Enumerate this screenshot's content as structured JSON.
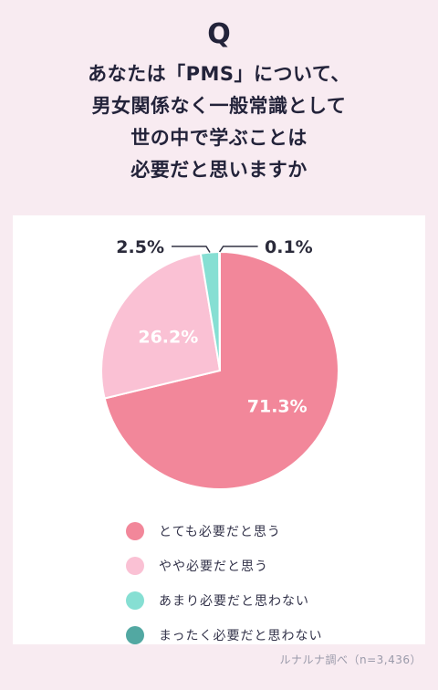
{
  "q_mark": "Q",
  "question": {
    "lines": [
      "あなたは「PMS」について、",
      "男女関係なく一般常識として",
      "世の中で学ぶことは",
      "必要だと思いますか"
    ]
  },
  "chart_data": {
    "type": "pie",
    "categories": [
      "とても必要だと思う",
      "やや必要だと思う",
      "あまり必要だと思わない",
      "まったく必要だと思わない"
    ],
    "values": [
      71.3,
      26.2,
      2.5,
      0.1
    ],
    "value_labels": [
      "71.3%",
      "26.2%",
      "2.5%",
      "0.1%"
    ],
    "colors": [
      "#f2879a",
      "#fac1d4",
      "#86dfd3",
      "#52a8a2"
    ],
    "legend_position": "bottom",
    "title": ""
  },
  "legend": [
    {
      "label": "とても必要だと思う",
      "color": "#f2879a"
    },
    {
      "label": "やや必要だと思う",
      "color": "#fac1d4"
    },
    {
      "label": "あまり必要だと思わない",
      "color": "#86dfd3"
    },
    {
      "label": "まったく必要だと思わない",
      "color": "#52a8a2"
    }
  ],
  "source": "ルナルナ調べ（n=3,436）"
}
